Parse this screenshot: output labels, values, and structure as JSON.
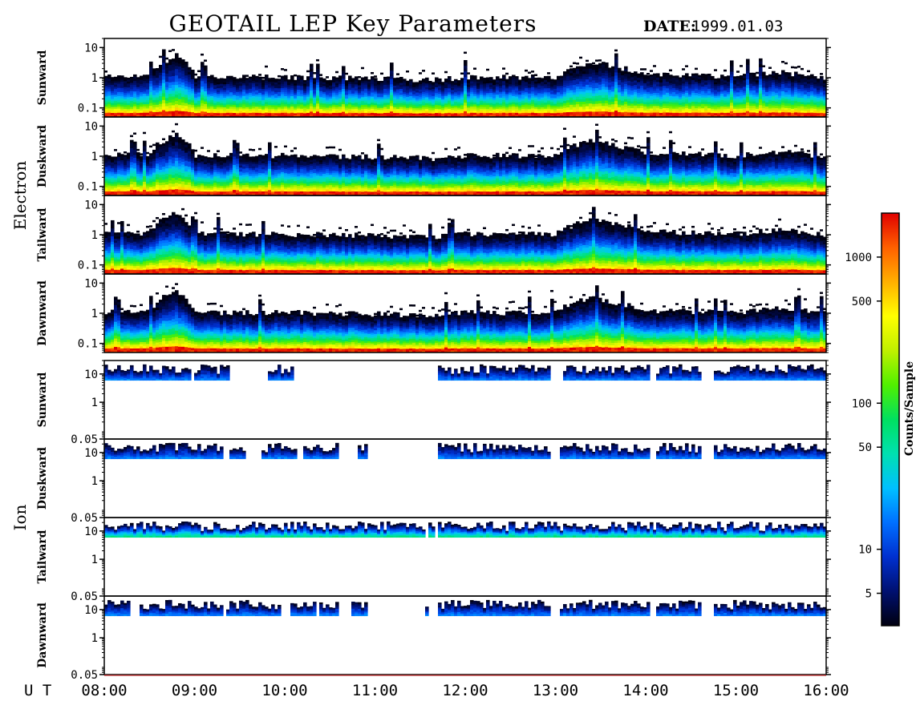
{
  "chart_data": {
    "type": "heatmap",
    "title": "GEOTAIL LEP Key Parameters",
    "date_label": "DATE:",
    "date_value": "1999.01.03",
    "time_axis": {
      "prefix": "U T",
      "ticks": [
        "08:00",
        "09:00",
        "10:00",
        "11:00",
        "12:00",
        "13:00",
        "14:00",
        "15:00",
        "16:00"
      ],
      "range": [
        "08:00",
        "16:00"
      ]
    },
    "groups": [
      {
        "name": "Electron",
        "panels": [
          "Sunward",
          "Duskward",
          "Tailward",
          "Dawnward"
        ],
        "y_ticks": [
          "10",
          "1",
          "0.1"
        ],
        "ylim": [
          0.05,
          20
        ],
        "scale": "log"
      },
      {
        "name": "Ion",
        "panels": [
          "Sunward",
          "Duskward",
          "Tailward",
          "Dawnward"
        ],
        "y_ticks": [
          "10",
          "1",
          "0.05"
        ],
        "ylim": [
          0.05,
          30
        ],
        "scale": "log"
      }
    ],
    "colorbar": {
      "label": "Counts/Sample",
      "scale": "log",
      "range": [
        3,
        2000
      ],
      "ticks": [
        "1000",
        "500",
        "100",
        "50",
        "10",
        "5"
      ],
      "colors": [
        "#000010",
        "#001070",
        "#0030d0",
        "#0070ff",
        "#00c0ff",
        "#00e0b0",
        "#00e060",
        "#50f000",
        "#c0f000",
        "#ffff00",
        "#ffb000",
        "#ff6000",
        "#e00000"
      ]
    },
    "electron_profile": {
      "note_hours": [
        8.0,
        8.5,
        8.8,
        9.0,
        10.0,
        11.0,
        11.7,
        12.0,
        13.0,
        13.4,
        14.0,
        15.0,
        15.5,
        16.0
      ],
      "upper_energy": [
        1.0,
        1.1,
        5,
        1.0,
        1.0,
        0.9,
        0.8,
        1.0,
        1.0,
        3,
        1.2,
        1.0,
        1.4,
        0.9
      ]
    },
    "ion_coverage": {
      "Sunward": [
        [
          8.0,
          8.4
        ],
        [
          8.4,
          8.95
        ],
        [
          9.0,
          9.4
        ],
        [
          9.8,
          10.1
        ],
        [
          11.7,
          12.95
        ],
        [
          13.1,
          14.05
        ],
        [
          14.1,
          14.6
        ],
        [
          14.75,
          16.0
        ]
      ],
      "Duskward": [
        [
          8.0,
          9.3
        ],
        [
          9.4,
          9.55
        ],
        [
          9.75,
          10.15
        ],
        [
          10.2,
          10.6
        ],
        [
          10.8,
          10.9
        ],
        [
          11.7,
          12.95
        ],
        [
          13.05,
          14.05
        ],
        [
          14.1,
          14.6
        ],
        [
          14.75,
          16.0
        ]
      ],
      "Tailward": [
        [
          8.0,
          11.05
        ],
        [
          11.05,
          11.55
        ],
        [
          11.6,
          11.65
        ],
        [
          11.7,
          16.0
        ]
      ],
      "Dawnward": [
        [
          8.0,
          8.3
        ],
        [
          8.4,
          9.3
        ],
        [
          9.35,
          9.6
        ],
        [
          9.6,
          9.95
        ],
        [
          10.05,
          10.35
        ],
        [
          10.4,
          10.6
        ],
        [
          10.75,
          10.9
        ],
        [
          11.55,
          11.6
        ],
        [
          11.7,
          12.95
        ],
        [
          13.05,
          14.05
        ],
        [
          14.1,
          14.6
        ],
        [
          14.75,
          16.0
        ]
      ]
    }
  }
}
